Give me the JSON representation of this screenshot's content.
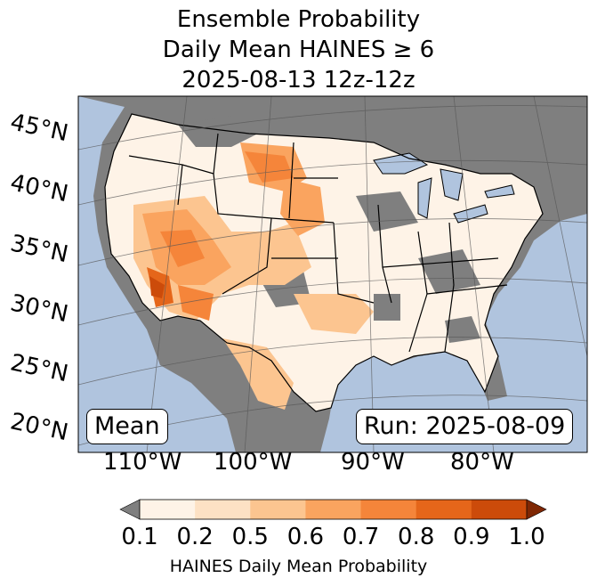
{
  "title": {
    "line1": "Ensemble Probability",
    "line2": "Daily Mean HAINES ≥ 6",
    "line3": "2025-08-13 12z-12z"
  },
  "lat_labels": [
    "45°N",
    "40°N",
    "35°N",
    "30°N",
    "25°N",
    "20°N"
  ],
  "lon_labels": [
    "110°W",
    "100°W",
    "90°W",
    "80°W"
  ],
  "mean_label": "Mean",
  "run_label": "Run: 2025-08-09",
  "colorbar": {
    "ticks": [
      "0.1",
      "0.2",
      "0.5",
      "0.6",
      "0.7",
      "0.8",
      "0.9",
      "1.0"
    ],
    "label": "HAINES Daily Mean Probability",
    "colors": [
      "#fef3e7",
      "#fde1c4",
      "#fcc590",
      "#faa45f",
      "#f5853a",
      "#e5661a",
      "#cc4b0a"
    ],
    "under_color": "#7f7f7f",
    "over_color": "#7f2704"
  },
  "map_colors": {
    "ocean": "#b0c4de",
    "land_missing": "#7f7f7f",
    "low": "#fef3e7"
  }
}
